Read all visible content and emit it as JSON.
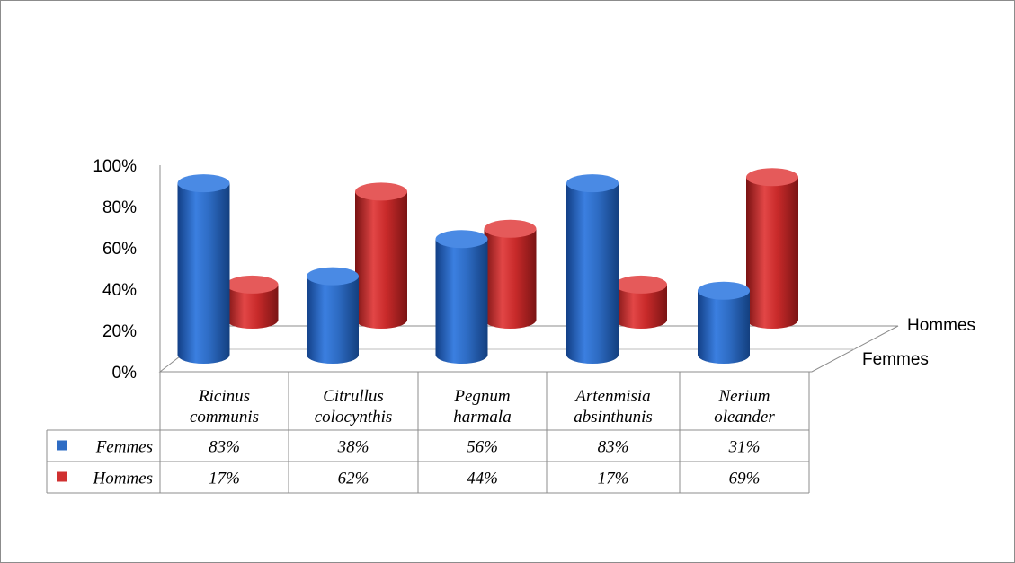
{
  "chart_data": {
    "type": "bar",
    "style": "3d-cylinder",
    "categories": [
      "Ricinus communis",
      "Citrullus colocynthis",
      "Pegnum harmala",
      "Artenmisia absinthunis",
      "Nerium oleander"
    ],
    "category_lines": [
      [
        "Ricinus",
        "communis"
      ],
      [
        "Citrullus",
        "colocynthis"
      ],
      [
        "Pegnum",
        "harmala"
      ],
      [
        "Artenmisia",
        "absinthunis"
      ],
      [
        "Nerium",
        "oleander"
      ]
    ],
    "series": [
      {
        "name": "Femmes",
        "values": [
          83,
          38,
          56,
          83,
          31
        ],
        "labels": [
          "83%",
          "38%",
          "56%",
          "83%",
          "31%"
        ],
        "color": "#2e6cc4"
      },
      {
        "name": "Hommes",
        "values": [
          17,
          62,
          44,
          17,
          69
        ],
        "labels": [
          "17%",
          "62%",
          "44%",
          "17%",
          "69%"
        ],
        "color": "#d03030"
      }
    ],
    "yticks": [
      "0%",
      "20%",
      "40%",
      "60%",
      "80%",
      "100%"
    ],
    "ylim": [
      0,
      100
    ],
    "depth_labels": [
      "Hommes",
      "Femmes"
    ],
    "data_table": true,
    "legend": "data-table"
  }
}
